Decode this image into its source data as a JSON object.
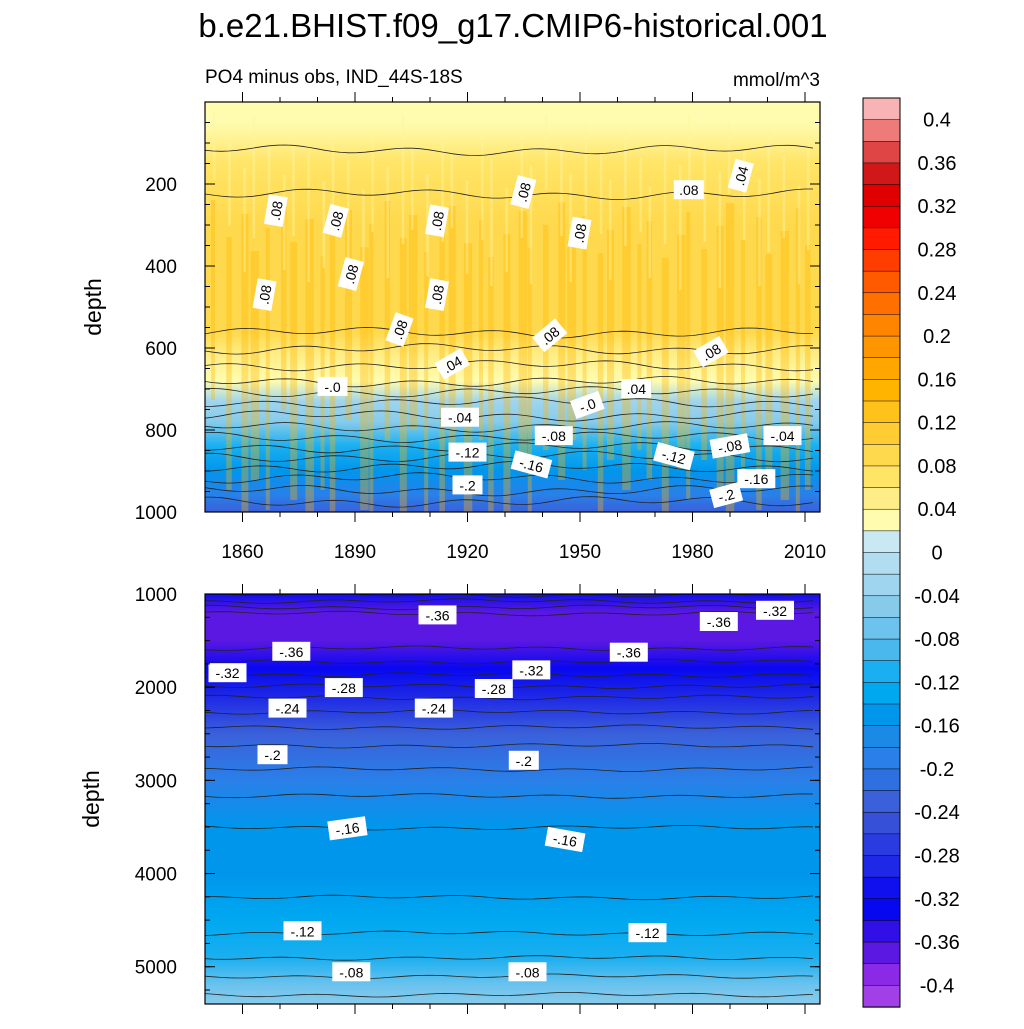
{
  "chart_data": {
    "type": "heatmap",
    "title": "b.e21.BHIST.f09_g17.CMIP6-historical.001",
    "subtitle": "PO4 minus obs, IND_44S-18S",
    "units": "mmol/m^3",
    "x": {
      "label": "",
      "range": [
        1850,
        2014
      ],
      "ticks": [
        1860,
        1890,
        1920,
        1950,
        1980,
        2010
      ],
      "tick_labels": [
        "1860",
        "1890",
        "1920",
        "1950",
        "1980",
        "2010"
      ]
    },
    "panels": [
      {
        "name": "upper",
        "ylabel": "depth",
        "y_range": [
          0,
          1000
        ],
        "y_ticks": [
          200,
          400,
          600,
          800,
          1000
        ],
        "y_tick_labels": [
          "200",
          "400",
          "600",
          "800",
          "1000"
        ],
        "depth_profile": [
          {
            "depth": 50,
            "value": 0.04
          },
          {
            "depth": 150,
            "value": 0.07
          },
          {
            "depth": 300,
            "value": 0.09
          },
          {
            "depth": 450,
            "value": 0.09
          },
          {
            "depth": 560,
            "value": 0.08
          },
          {
            "depth": 620,
            "value": 0.05
          },
          {
            "depth": 680,
            "value": 0.02
          },
          {
            "depth": 730,
            "value": -0.02
          },
          {
            "depth": 780,
            "value": -0.05
          },
          {
            "depth": 840,
            "value": -0.1
          },
          {
            "depth": 900,
            "value": -0.15
          },
          {
            "depth": 960,
            "value": -0.19
          },
          {
            "depth": 1000,
            "value": -0.22
          }
        ],
        "contour_labels": [
          {
            "text": ".08",
            "x": 1869,
            "y": 265,
            "angle": -80
          },
          {
            "text": ".08",
            "x": 1885,
            "y": 290,
            "angle": -75
          },
          {
            "text": ".08",
            "x": 1912,
            "y": 290,
            "angle": -80
          },
          {
            "text": ".08",
            "x": 1935,
            "y": 220,
            "angle": -75
          },
          {
            "text": ".08",
            "x": 1950,
            "y": 320,
            "angle": -80
          },
          {
            "text": ".08",
            "x": 1979,
            "y": 215,
            "angle": 0
          },
          {
            "text": ".04",
            "x": 1993,
            "y": 180,
            "angle": -75
          },
          {
            "text": ".08",
            "x": 1866,
            "y": 470,
            "angle": -80
          },
          {
            "text": ".08",
            "x": 1889,
            "y": 420,
            "angle": -75
          },
          {
            "text": ".08",
            "x": 1912,
            "y": 470,
            "angle": -80
          },
          {
            "text": ".08",
            "x": 1902,
            "y": 555,
            "angle": -70
          },
          {
            "text": ".08",
            "x": 1942,
            "y": 570,
            "angle": -40
          },
          {
            "text": ".08",
            "x": 1985,
            "y": 610,
            "angle": -30
          },
          {
            "text": ".04",
            "x": 1916,
            "y": 640,
            "angle": -30
          },
          {
            "text": "-.0",
            "x": 1884,
            "y": 695,
            "angle": 0
          },
          {
            "text": ".04",
            "x": 1965,
            "y": 700,
            "angle": 0
          },
          {
            "text": "-.0",
            "x": 1952,
            "y": 740,
            "angle": -20
          },
          {
            "text": "-.04",
            "x": 1918,
            "y": 770,
            "angle": 0
          },
          {
            "text": "-.08",
            "x": 1943,
            "y": 815,
            "angle": 0
          },
          {
            "text": "-.04",
            "x": 2004,
            "y": 815,
            "angle": 0
          },
          {
            "text": "-.08",
            "x": 1990,
            "y": 840,
            "angle": -10
          },
          {
            "text": "-.12",
            "x": 1920,
            "y": 855,
            "angle": 0
          },
          {
            "text": "-.12",
            "x": 1975,
            "y": 865,
            "angle": 15
          },
          {
            "text": "-.16",
            "x": 1937,
            "y": 885,
            "angle": 15
          },
          {
            "text": "-.16",
            "x": 1997,
            "y": 920,
            "angle": 0
          },
          {
            "text": "-.2",
            "x": 1920,
            "y": 935,
            "angle": 0
          },
          {
            "text": "-.2",
            "x": 1989,
            "y": 960,
            "angle": -15
          }
        ]
      },
      {
        "name": "lower",
        "ylabel": "depth",
        "y_range": [
          1000,
          5400
        ],
        "y_ticks": [
          1000,
          2000,
          3000,
          4000,
          5000
        ],
        "y_tick_labels": [
          "1000",
          "2000",
          "3000",
          "4000",
          "5000"
        ],
        "depth_profile": [
          {
            "depth": 1000,
            "value": -0.3
          },
          {
            "depth": 1200,
            "value": -0.36
          },
          {
            "depth": 1500,
            "value": -0.37
          },
          {
            "depth": 1800,
            "value": -0.33
          },
          {
            "depth": 2100,
            "value": -0.28
          },
          {
            "depth": 2500,
            "value": -0.23
          },
          {
            "depth": 3000,
            "value": -0.19
          },
          {
            "depth": 3500,
            "value": -0.16
          },
          {
            "depth": 4000,
            "value": -0.15
          },
          {
            "depth": 4500,
            "value": -0.13
          },
          {
            "depth": 4900,
            "value": -0.1
          },
          {
            "depth": 5200,
            "value": -0.07
          },
          {
            "depth": 5400,
            "value": -0.05
          }
        ],
        "contour_labels": [
          {
            "text": "-.36",
            "x": 1912,
            "y": 1230,
            "angle": 0
          },
          {
            "text": "-.36",
            "x": 1987,
            "y": 1300,
            "angle": 0
          },
          {
            "text": "-.32",
            "x": 2002,
            "y": 1180,
            "angle": 0
          },
          {
            "text": "-.36",
            "x": 1873,
            "y": 1620,
            "angle": 0
          },
          {
            "text": "-.36",
            "x": 1963,
            "y": 1630,
            "angle": 0
          },
          {
            "text": "-.32",
            "x": 1856,
            "y": 1850,
            "angle": 0
          },
          {
            "text": "-.32",
            "x": 1937,
            "y": 1820,
            "angle": 0
          },
          {
            "text": "-.28",
            "x": 1887,
            "y": 2010,
            "angle": 0
          },
          {
            "text": "-.28",
            "x": 1927,
            "y": 2020,
            "angle": 0
          },
          {
            "text": "-.24",
            "x": 1872,
            "y": 2230,
            "angle": 0
          },
          {
            "text": "-.24",
            "x": 1911,
            "y": 2230,
            "angle": 0
          },
          {
            "text": "-.2",
            "x": 1868,
            "y": 2730,
            "angle": 0
          },
          {
            "text": "-.2",
            "x": 1935,
            "y": 2790,
            "angle": 0
          },
          {
            "text": "-.16",
            "x": 1888,
            "y": 3520,
            "angle": -8
          },
          {
            "text": "-.16",
            "x": 1946,
            "y": 3640,
            "angle": 10
          },
          {
            "text": "-.12",
            "x": 1876,
            "y": 4620,
            "angle": 0
          },
          {
            "text": "-.12",
            "x": 1968,
            "y": 4640,
            "angle": 0
          },
          {
            "text": "-.08",
            "x": 1889,
            "y": 5060,
            "angle": 0
          },
          {
            "text": "-.08",
            "x": 1936,
            "y": 5060,
            "angle": 0
          }
        ]
      }
    ],
    "colorbar": {
      "range": [
        -0.42,
        0.42
      ],
      "step": 0.02,
      "tick_labels": [
        "0.4",
        "0.36",
        "0.32",
        "0.28",
        "0.24",
        "0.2",
        "0.16",
        "0.12",
        "0.08",
        "0.04",
        "0",
        "-0.04",
        "-0.08",
        "-0.12",
        "-0.16",
        "-0.2",
        "-0.24",
        "-0.28",
        "-0.32",
        "-0.36",
        "-0.4"
      ],
      "tick_values": [
        0.4,
        0.36,
        0.32,
        0.28,
        0.24,
        0.2,
        0.16,
        0.12,
        0.08,
        0.04,
        0,
        -0.04,
        -0.08,
        -0.12,
        -0.16,
        -0.2,
        -0.24,
        -0.28,
        -0.32,
        -0.36,
        -0.4
      ],
      "colors_top_to_bottom": [
        "#f8b4b4",
        "#ee7a7a",
        "#e04545",
        "#d01818",
        "#e00000",
        "#f00000",
        "#ff1a00",
        "#ff3d00",
        "#ff5a00",
        "#ff7000",
        "#ff8400",
        "#ff9600",
        "#ffa600",
        "#ffb400",
        "#ffc21a",
        "#ffcd33",
        "#ffd94d",
        "#ffe466",
        "#ffee88",
        "#fffcb0",
        "#c8e8f4",
        "#b2ddf0",
        "#9fd5ee",
        "#87cbeb",
        "#6cc3ee",
        "#4ab8ec",
        "#1aaff0",
        "#00a8f0",
        "#0096ec",
        "#1a8ae6",
        "#2a7fe8",
        "#2e70e0",
        "#3a60da",
        "#3650d8",
        "#2a3ce0",
        "#1e28e6",
        "#1010ee",
        "#0808f0",
        "#3010e6",
        "#5a18e2",
        "#8a2ae6",
        "#a040e6"
      ]
    }
  }
}
